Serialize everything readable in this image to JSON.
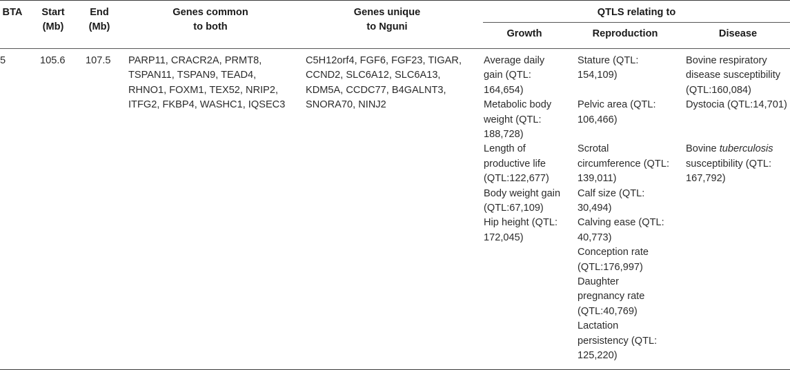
{
  "headers": {
    "bta": "BTA",
    "start": [
      "Start",
      "(Mb)"
    ],
    "end": [
      "End",
      "(Mb)"
    ],
    "common": [
      "Genes common",
      "to both"
    ],
    "unique": [
      "Genes unique",
      "to Nguni"
    ],
    "qtls": "QTLS relating to",
    "growth": "Growth",
    "reproduction": "Reproduction",
    "disease": "Disease"
  },
  "row": {
    "bta": "5",
    "start": "105.6",
    "end": "107.5",
    "common_lines": [
      "PARP11, CRACR2A, PRMT8,",
      "TSPAN11, TSPAN9, TEAD4,",
      "RHNO1, FOXM1, TEX52, NRIP2,",
      "ITFG2, FKBP4, WASHC1, IQSEC3"
    ],
    "unique_lines": [
      "C5H12orf4, FGF6, FGF23, TIGAR,",
      "CCND2, SLC6A12, SLC6A13,",
      "KDM5A, CCDC77, B4GALNT3,",
      "SNORA70, NINJ2"
    ],
    "growth": [
      [
        "Average daily",
        "gain (QTL:",
        "164,654)"
      ],
      [
        "Metabolic body",
        "weight (QTL:",
        "188,728)"
      ],
      [
        "Length of",
        "productive life",
        "(QTL:122,677)"
      ],
      [
        "Body weight gain",
        "(QTL:67,109)"
      ],
      [
        "Hip height (QTL:",
        "172,045)"
      ]
    ],
    "reproduction": [
      [
        "Stature (QTL:",
        "154,109)"
      ],
      [
        "Pelvic area (QTL:",
        "106,466)"
      ],
      [
        "Scrotal",
        "circumference (QTL:",
        "139,011)"
      ],
      [
        "Calf size (QTL:",
        "30,494)"
      ],
      [
        "Calving ease (QTL:",
        "40,773)"
      ],
      [
        "Conception rate",
        "(QTL:176,997)"
      ],
      [
        "Daughter",
        "pregnancy rate",
        "(QTL:40,769)"
      ],
      [
        "Lactation",
        "persistency (QTL:",
        "125,220)"
      ]
    ],
    "disease": {
      "respiratory": [
        "Bovine respiratory",
        "disease susceptibility",
        "(QTL:160,084)"
      ],
      "dystocia": "Dystocia (QTL:14,701)",
      "tb_prefix": "Bovine ",
      "tb_italic": "tuberculosis",
      "tb_rest": [
        "susceptibility (QTL:",
        "167,792)"
      ]
    }
  }
}
